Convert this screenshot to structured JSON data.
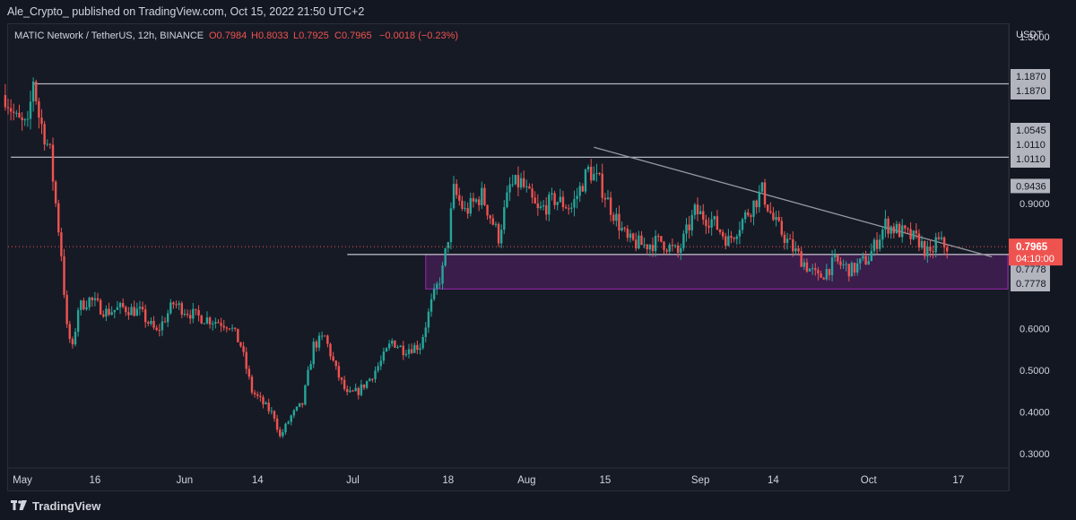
{
  "header": {
    "published_line": "Ale_Crypto_  published on TradingView.com, Oct 15, 2022 21:50 UTC+2"
  },
  "footer": {
    "brand": "TradingView"
  },
  "chart_data": {
    "type": "candlestick",
    "symbol_line": "MATIC Network / TetherUS, 12h, BINANCE",
    "ohlc_labels": {
      "O": "O0.7984",
      "H": "H0.8033",
      "L": "L0.7925",
      "C": "C0.7965",
      "change": "−0.0018 (−0.23%)"
    },
    "price_axis": {
      "unit": "USDT",
      "ticks": [
        "1.3000",
        "0.9000",
        "0.6000",
        "0.5000",
        "0.4000",
        "0.3000"
      ],
      "range": [
        0.27,
        1.33
      ]
    },
    "time_axis": {
      "labels": [
        "May",
        "16",
        "Jun",
        "14",
        "Jul",
        "18",
        "Aug",
        "15",
        "Sep",
        "14",
        "Oct",
        "17"
      ]
    },
    "horizontal_levels": [
      {
        "price": 1.187,
        "label": "1.1870"
      },
      {
        "price": 1.011,
        "label": "1.0110"
      },
      {
        "price": 0.7778,
        "label": "0.7778"
      }
    ],
    "price_badges": {
      "grey": [
        "1.1870",
        "1.0545",
        "1.0110",
        "0.9436",
        "0.7778"
      ],
      "last_price": "0.7965",
      "countdown": "04:10:00"
    },
    "support_zone": {
      "top": 0.7778,
      "bottom": 0.695
    },
    "downtrend_line": [
      {
        "time": "2022-08-13",
        "price": 1.035
      },
      {
        "time": "2022-10-23",
        "price": 0.772
      }
    ],
    "colors": {
      "up": "#26a69a",
      "down": "#ef5350",
      "zone": "#9c27b0",
      "level": "#b2b5be",
      "last": "#ef5350"
    },
    "close_path": [
      [
        "2022-04-30",
        1.16
      ],
      [
        "2022-05-02",
        1.1
      ],
      [
        "2022-05-04",
        1.08
      ],
      [
        "2022-05-05",
        1.2
      ],
      [
        "2022-05-06",
        1.11
      ],
      [
        "2022-05-08",
        1.02
      ],
      [
        "2022-05-10",
        0.78
      ],
      [
        "2022-05-11",
        0.6
      ],
      [
        "2022-05-12",
        0.55
      ],
      [
        "2022-05-13",
        0.65
      ],
      [
        "2022-05-15",
        0.67
      ],
      [
        "2022-05-18",
        0.64
      ],
      [
        "2022-05-21",
        0.65
      ],
      [
        "2022-05-24",
        0.64
      ],
      [
        "2022-05-27",
        0.59
      ],
      [
        "2022-05-30",
        0.66
      ],
      [
        "2022-06-03",
        0.63
      ],
      [
        "2022-06-06",
        0.62
      ],
      [
        "2022-06-09",
        0.61
      ],
      [
        "2022-06-11",
        0.56
      ],
      [
        "2022-06-13",
        0.45
      ],
      [
        "2022-06-15",
        0.42
      ],
      [
        "2022-06-17",
        0.39
      ],
      [
        "2022-06-18",
        0.34
      ],
      [
        "2022-06-20",
        0.39
      ],
      [
        "2022-06-22",
        0.42
      ],
      [
        "2022-06-24",
        0.56
      ],
      [
        "2022-06-26",
        0.58
      ],
      [
        "2022-06-28",
        0.5
      ],
      [
        "2022-06-30",
        0.44
      ],
      [
        "2022-07-02",
        0.45
      ],
      [
        "2022-07-04",
        0.48
      ],
      [
        "2022-07-06",
        0.52
      ],
      [
        "2022-07-08",
        0.57
      ],
      [
        "2022-07-10",
        0.55
      ],
      [
        "2022-07-13",
        0.56
      ],
      [
        "2022-07-15",
        0.66
      ],
      [
        "2022-07-17",
        0.74
      ],
      [
        "2022-07-18",
        0.82
      ],
      [
        "2022-07-19",
        0.93
      ],
      [
        "2022-07-21",
        0.88
      ],
      [
        "2022-07-24",
        0.92
      ],
      [
        "2022-07-27",
        0.82
      ],
      [
        "2022-07-29",
        0.94
      ],
      [
        "2022-07-31",
        0.95
      ],
      [
        "2022-08-03",
        0.88
      ],
      [
        "2022-08-06",
        0.91
      ],
      [
        "2022-08-09",
        0.89
      ],
      [
        "2022-08-12",
        0.98
      ],
      [
        "2022-08-14",
        0.95
      ],
      [
        "2022-08-16",
        0.89
      ],
      [
        "2022-08-19",
        0.81
      ],
      [
        "2022-08-22",
        0.8
      ],
      [
        "2022-08-25",
        0.81
      ],
      [
        "2022-08-28",
        0.78
      ],
      [
        "2022-08-31",
        0.88
      ],
      [
        "2022-09-03",
        0.86
      ],
      [
        "2022-09-06",
        0.81
      ],
      [
        "2022-09-09",
        0.87
      ],
      [
        "2022-09-12",
        0.93
      ],
      [
        "2022-09-14",
        0.86
      ],
      [
        "2022-09-17",
        0.8
      ],
      [
        "2022-09-20",
        0.75
      ],
      [
        "2022-09-22",
        0.72
      ],
      [
        "2022-09-25",
        0.76
      ],
      [
        "2022-09-28",
        0.74
      ],
      [
        "2022-10-01",
        0.77
      ],
      [
        "2022-10-04",
        0.85
      ],
      [
        "2022-10-07",
        0.83
      ],
      [
        "2022-10-10",
        0.81
      ],
      [
        "2022-10-12",
        0.77
      ],
      [
        "2022-10-13",
        0.81
      ],
      [
        "2022-10-15",
        0.7965
      ]
    ]
  }
}
